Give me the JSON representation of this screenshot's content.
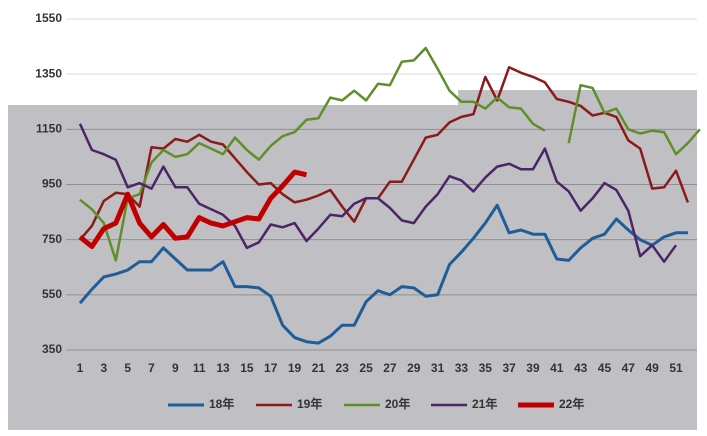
{
  "chart_data": {
    "type": "line",
    "categories": [
      "1",
      null,
      "3",
      null,
      "5",
      null,
      "7",
      null,
      "9",
      null,
      "11",
      null,
      "13",
      null,
      "15",
      null,
      "17",
      null,
      "19",
      null,
      "21",
      null,
      "23",
      null,
      "25",
      null,
      "27",
      null,
      "29",
      null,
      "31",
      null,
      "33",
      null,
      "35",
      null,
      "37",
      null,
      "39",
      null,
      "41",
      null,
      "43",
      null,
      "45",
      null,
      "47",
      null,
      "49",
      null,
      "51",
      null,
      null
    ],
    "ylim": [
      350,
      1550
    ],
    "yticks": [
      350,
      550,
      750,
      950,
      1150,
      1350,
      1550
    ],
    "grid": true,
    "legend": "bottom",
    "series": [
      {
        "name": "18年",
        "color": "#1f5d99",
        "width": 3,
        "values": [
          520,
          570,
          615,
          625,
          640,
          670,
          670,
          720,
          680,
          640,
          640,
          640,
          670,
          580,
          580,
          575,
          545,
          440,
          395,
          380,
          375,
          400,
          440,
          440,
          525,
          565,
          550,
          580,
          575,
          545,
          550,
          660,
          705,
          755,
          810,
          875,
          775,
          785,
          770,
          770,
          680,
          675,
          720,
          755,
          770,
          825,
          785,
          750,
          730,
          760,
          775,
          775,
          null
        ]
      },
      {
        "name": "19年",
        "color": "#8b1a1a",
        "width": 2.5,
        "values": [
          750,
          800,
          890,
          920,
          915,
          870,
          1085,
          1080,
          1115,
          1105,
          1130,
          1105,
          1095,
          1045,
          995,
          950,
          955,
          915,
          885,
          895,
          910,
          930,
          870,
          815,
          900,
          900,
          960,
          960,
          1040,
          1120,
          1130,
          1175,
          1195,
          1205,
          1340,
          1255,
          1375,
          1355,
          1340,
          1320,
          1260,
          1250,
          1235,
          1200,
          1210,
          1195,
          1110,
          1080,
          935,
          940,
          1000,
          885,
          null
        ]
      },
      {
        "name": "20年",
        "color": "#5f8f2a",
        "width": 2.5,
        "values": [
          895,
          860,
          810,
          675,
          900,
          915,
          1030,
          1075,
          1050,
          1060,
          1100,
          1080,
          1060,
          1120,
          1075,
          1040,
          1090,
          1125,
          1140,
          1185,
          1190,
          1265,
          1255,
          1290,
          1255,
          1315,
          1310,
          1395,
          1400,
          1445,
          1370,
          1290,
          1250,
          1250,
          1225,
          1265,
          1230,
          1225,
          1170,
          1145,
          null,
          1100,
          1310,
          1300,
          1210,
          1225,
          1150,
          1135,
          1145,
          1140,
          1060,
          1100,
          1150
        ]
      },
      {
        "name": "21年",
        "color": "#4b2567",
        "width": 2.5,
        "values": [
          1170,
          1075,
          1060,
          1040,
          940,
          955,
          935,
          1015,
          940,
          940,
          880,
          860,
          840,
          800,
          720,
          740,
          805,
          795,
          810,
          745,
          790,
          840,
          835,
          880,
          900,
          900,
          865,
          820,
          810,
          870,
          915,
          980,
          965,
          925,
          975,
          1015,
          1025,
          1005,
          1005,
          1080,
          960,
          925,
          855,
          900,
          955,
          930,
          855,
          690,
          730,
          670,
          730,
          null,
          null
        ]
      },
      {
        "name": "22年",
        "color": "#c00000",
        "width": 5,
        "values": [
          760,
          725,
          790,
          810,
          915,
          810,
          760,
          805,
          755,
          760,
          830,
          810,
          800,
          815,
          830,
          825,
          900,
          945,
          995,
          985,
          null,
          null,
          null,
          null,
          null,
          null,
          null,
          null,
          null,
          null,
          null,
          null,
          null,
          null,
          null,
          null,
          null,
          null,
          null,
          null,
          null,
          null,
          null,
          null,
          null,
          null,
          null,
          null,
          null,
          null,
          null,
          null,
          null
        ]
      }
    ]
  }
}
